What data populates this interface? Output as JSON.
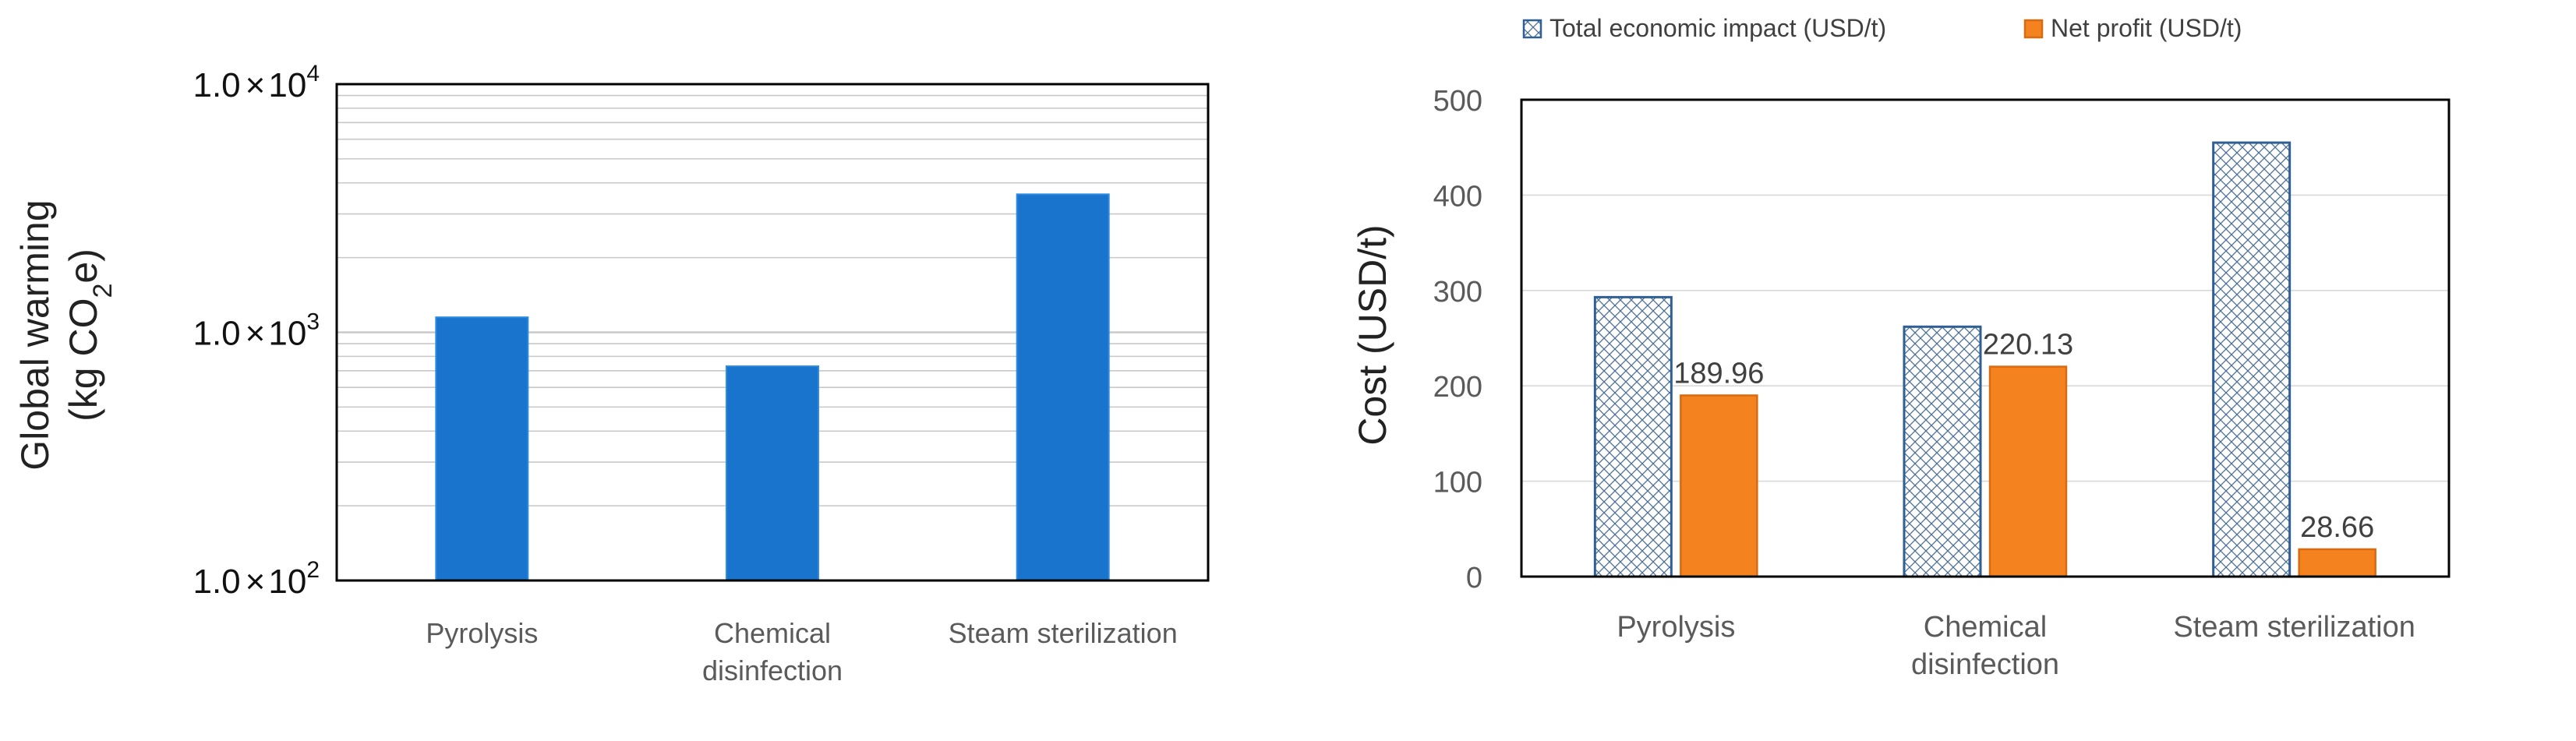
{
  "colors": {
    "left_bar": "#1874CD",
    "left_bar_edge": "#2E8BE0",
    "total_impact_stroke": "#2F5F93",
    "total_impact_pattern": "#4C6F96",
    "net_profit": "#F4831F",
    "net_profit_edge": "#D96A10",
    "grid": "#C8C8C8",
    "axis_text": "#5A5A5A",
    "title_text": "#222222"
  },
  "chart_data": [
    {
      "type": "bar",
      "id": "global-warming",
      "yscale": "log",
      "ylim": [
        100,
        10000
      ],
      "categories": [
        [
          "Pyrolysis"
        ],
        [
          "Chemical",
          "disinfection"
        ],
        [
          "Steam sterilization"
        ]
      ],
      "values": [
        1150,
        730,
        3600
      ],
      "yticks": [
        {
          "value": 100,
          "mantissa": "1.0",
          "times": "×",
          "base": "10",
          "exp": "2"
        },
        {
          "value": 1000,
          "mantissa": "1.0",
          "times": "×",
          "base": "10",
          "exp": "3"
        },
        {
          "value": 10000,
          "mantissa": "1.0",
          "times": "×",
          "base": "10",
          "exp": "4"
        }
      ],
      "ylabel": {
        "line1": "Global warming",
        "line2_pre": "(kg CO",
        "line2_sub": "2",
        "line2_post": "e)"
      },
      "grid": "horizontal minor log"
    },
    {
      "type": "bar",
      "id": "cost",
      "ylim": [
        0,
        500
      ],
      "yticks": [
        "0",
        "100",
        "200",
        "300",
        "400",
        "500"
      ],
      "ylabel": "Cost (USD/t)",
      "categories": [
        [
          "Pyrolysis"
        ],
        [
          "Chemical",
          "disinfection"
        ],
        [
          "Steam sterilization"
        ]
      ],
      "series": [
        {
          "name": "Total economic impact (USD/t)",
          "values": [
            293,
            262,
            455
          ],
          "labels": [
            "",
            "",
            ""
          ],
          "style": "crosshatch"
        },
        {
          "name": "Net profit (USD/t)",
          "values": [
            189.96,
            220.13,
            28.66
          ],
          "labels": [
            "189.96",
            "220.13",
            "28.66"
          ],
          "style": "solid"
        }
      ],
      "legend": "top",
      "grid": "horizontal"
    }
  ]
}
